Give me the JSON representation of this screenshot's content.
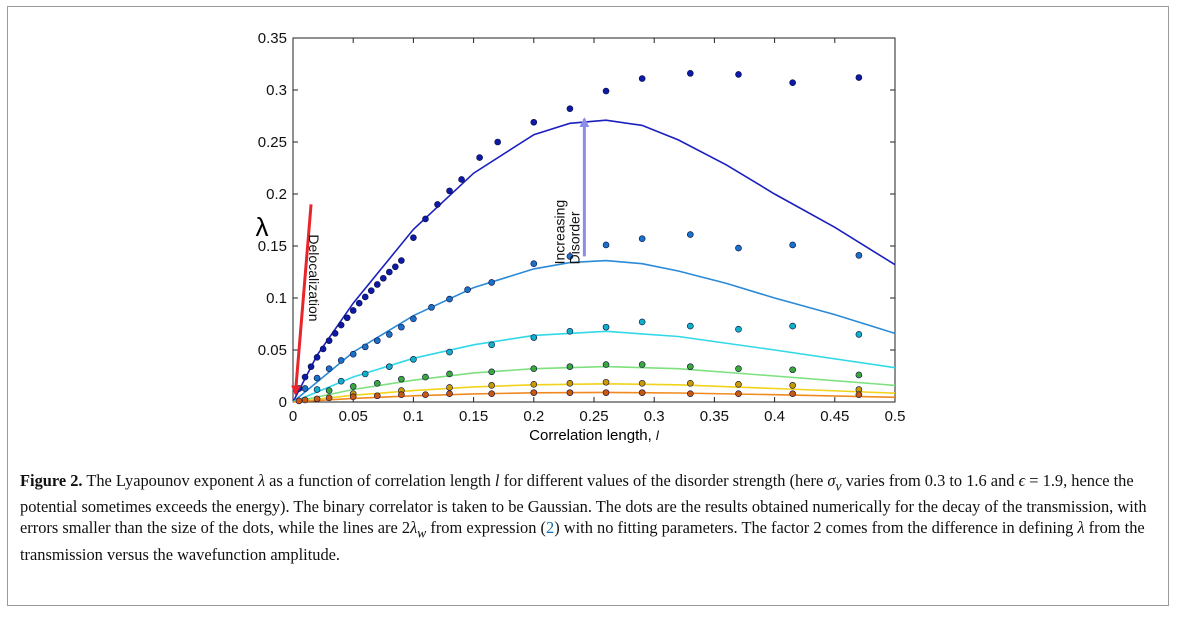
{
  "chart_data": {
    "type": "scatter",
    "ylabel": "λ",
    "xlabel": "Correlation length,",
    "xlabel_symbol": "l",
    "xlim": [
      0,
      0.5
    ],
    "ylim": [
      0,
      0.35
    ],
    "xticks": [
      0,
      0.05,
      0.1,
      0.15,
      0.2,
      0.25,
      0.3,
      0.35,
      0.4,
      0.45,
      0.5
    ],
    "yticks": [
      0,
      0.05,
      0.1,
      0.15,
      0.2,
      0.25,
      0.3,
      0.35
    ],
    "xtick_labels": [
      "0",
      "0.05",
      "0.1",
      "0.15",
      "0.2",
      "0.25",
      "0.3",
      "0.35",
      "0.4",
      "0.45",
      "0.5"
    ],
    "ytick_labels": [
      "0",
      "0.05",
      "0.1",
      "0.15",
      "0.2",
      "0.25",
      "0.3",
      "0.35"
    ],
    "annotations": [
      {
        "text": "Delocalization",
        "color": "#e8252a",
        "from": [
          0.015,
          0.19
        ],
        "to": [
          0.002,
          0.008
        ]
      },
      {
        "text": [
          "Increasing",
          "Disorder"
        ],
        "color": "#8a8ee8",
        "from": [
          0.242,
          0.14
        ],
        "to": [
          0.242,
          0.272
        ]
      }
    ],
    "series": [
      {
        "color": "#1a1fbe",
        "dot": "#0d1aa8",
        "line_x": [
          0,
          0.02,
          0.05,
          0.1,
          0.15,
          0.2,
          0.23,
          0.26,
          0.29,
          0.32,
          0.36,
          0.4,
          0.45,
          0.5
        ],
        "line_y": [
          0,
          0.045,
          0.095,
          0.166,
          0.22,
          0.257,
          0.268,
          0.271,
          0.266,
          0.252,
          0.228,
          0.2,
          0.168,
          0.132
        ],
        "dot_x": [
          0.005,
          0.01,
          0.015,
          0.02,
          0.025,
          0.03,
          0.035,
          0.04,
          0.045,
          0.05,
          0.055,
          0.06,
          0.065,
          0.07,
          0.075,
          0.08,
          0.085,
          0.09,
          0.1,
          0.11,
          0.12,
          0.13,
          0.14,
          0.155,
          0.17,
          0.2,
          0.23,
          0.26,
          0.29,
          0.33,
          0.37,
          0.415,
          0.47
        ],
        "dot_y": [
          0.013,
          0.024,
          0.034,
          0.043,
          0.051,
          0.059,
          0.066,
          0.074,
          0.081,
          0.088,
          0.095,
          0.101,
          0.107,
          0.113,
          0.119,
          0.125,
          0.13,
          0.136,
          0.158,
          0.176,
          0.19,
          0.203,
          0.214,
          0.235,
          0.25,
          0.269,
          0.282,
          0.299,
          0.311,
          0.316,
          0.315,
          0.307,
          0.312
        ]
      },
      {
        "color": "#2a8ad8",
        "dot": "#1a72c8",
        "line_x": [
          0,
          0.05,
          0.1,
          0.15,
          0.2,
          0.23,
          0.26,
          0.29,
          0.32,
          0.36,
          0.4,
          0.45,
          0.5
        ],
        "line_y": [
          0,
          0.048,
          0.083,
          0.11,
          0.128,
          0.134,
          0.136,
          0.133,
          0.126,
          0.114,
          0.1,
          0.084,
          0.066
        ],
        "dot_x": [
          0.01,
          0.02,
          0.03,
          0.04,
          0.05,
          0.06,
          0.07,
          0.08,
          0.09,
          0.1,
          0.115,
          0.13,
          0.145,
          0.165,
          0.2,
          0.23,
          0.26,
          0.29,
          0.33,
          0.37,
          0.415,
          0.47
        ],
        "dot_y": [
          0.013,
          0.023,
          0.032,
          0.04,
          0.046,
          0.053,
          0.059,
          0.065,
          0.072,
          0.08,
          0.091,
          0.099,
          0.108,
          0.115,
          0.133,
          0.14,
          0.151,
          0.157,
          0.161,
          0.148,
          0.151,
          0.141
        ]
      },
      {
        "color": "#30d8e8",
        "dot": "#10b0c8",
        "line_x": [
          0,
          0.05,
          0.1,
          0.15,
          0.2,
          0.26,
          0.32,
          0.4,
          0.5
        ],
        "line_y": [
          0,
          0.024,
          0.042,
          0.055,
          0.064,
          0.068,
          0.063,
          0.05,
          0.033
        ],
        "dot_x": [
          0.02,
          0.04,
          0.06,
          0.08,
          0.1,
          0.13,
          0.165,
          0.2,
          0.23,
          0.26,
          0.29,
          0.33,
          0.37,
          0.415,
          0.47
        ],
        "dot_y": [
          0.012,
          0.02,
          0.027,
          0.034,
          0.041,
          0.048,
          0.055,
          0.062,
          0.068,
          0.072,
          0.077,
          0.073,
          0.07,
          0.073,
          0.065
        ]
      },
      {
        "color": "#7ee07e",
        "dot": "#3aa83a",
        "line_x": [
          0,
          0.05,
          0.1,
          0.15,
          0.2,
          0.26,
          0.32,
          0.4,
          0.5
        ],
        "line_y": [
          0,
          0.012,
          0.021,
          0.028,
          0.032,
          0.034,
          0.032,
          0.025,
          0.016
        ],
        "dot_x": [
          0.03,
          0.05,
          0.07,
          0.09,
          0.11,
          0.13,
          0.165,
          0.2,
          0.23,
          0.26,
          0.29,
          0.33,
          0.37,
          0.415,
          0.47
        ],
        "dot_y": [
          0.011,
          0.015,
          0.018,
          0.022,
          0.024,
          0.027,
          0.029,
          0.032,
          0.034,
          0.036,
          0.036,
          0.034,
          0.032,
          0.031,
          0.026
        ]
      },
      {
        "color": "#f2d21a",
        "dot": "#c89a00",
        "line_x": [
          0,
          0.05,
          0.1,
          0.15,
          0.2,
          0.26,
          0.32,
          0.4,
          0.5
        ],
        "line_y": [
          0,
          0.0065,
          0.011,
          0.0145,
          0.0165,
          0.0175,
          0.0165,
          0.013,
          0.0085
        ],
        "dot_x": [
          0.05,
          0.09,
          0.13,
          0.165,
          0.2,
          0.23,
          0.26,
          0.29,
          0.33,
          0.37,
          0.415,
          0.47
        ],
        "dot_y": [
          0.008,
          0.011,
          0.014,
          0.016,
          0.017,
          0.018,
          0.019,
          0.018,
          0.018,
          0.017,
          0.016,
          0.012
        ]
      },
      {
        "color": "#f08a20",
        "dot": "#c85a10",
        "line_x": [
          0,
          0.05,
          0.1,
          0.15,
          0.2,
          0.26,
          0.32,
          0.4,
          0.5
        ],
        "line_y": [
          0,
          0.0035,
          0.006,
          0.0078,
          0.0088,
          0.0092,
          0.0087,
          0.007,
          0.0045
        ],
        "dot_x": [
          0.005,
          0.01,
          0.02,
          0.03,
          0.05,
          0.07,
          0.09,
          0.11,
          0.13,
          0.165,
          0.2,
          0.23,
          0.26,
          0.29,
          0.33,
          0.37,
          0.415,
          0.47
        ],
        "dot_y": [
          0.001,
          0.002,
          0.003,
          0.004,
          0.005,
          0.006,
          0.007,
          0.007,
          0.008,
          0.008,
          0.009,
          0.009,
          0.009,
          0.009,
          0.008,
          0.008,
          0.008,
          0.007
        ]
      }
    ]
  },
  "caption": {
    "label": "Figure 2.",
    "p1": " The Lyapounov exponent ",
    "lambda": "λ",
    "p2": " as a function of correlation length ",
    "l": "l",
    "p3": " for different values of the disorder strength (here ",
    "sigma": "σ",
    "sigma_sub": "v",
    "p4": " varies from 0.3 to 1.6 and ",
    "eps": "ϵ",
    "p5": " = 1.9, hence the potential sometimes exceeds the energy). The binary correlator is taken to be Gaussian. The dots are the results obtained numerically for the decay of the transmission, with errors smaller than the size of the dots, while the lines are 2",
    "lambda2": "λ",
    "lambda2_sub": "w",
    "p6": " from expression (",
    "ref": "2",
    "p7": ") with no fitting parameters. The factor 2 comes from the difference in defining ",
    "lambda3": "λ",
    "p8": " from the transmission versus the wavefunction amplitude."
  }
}
